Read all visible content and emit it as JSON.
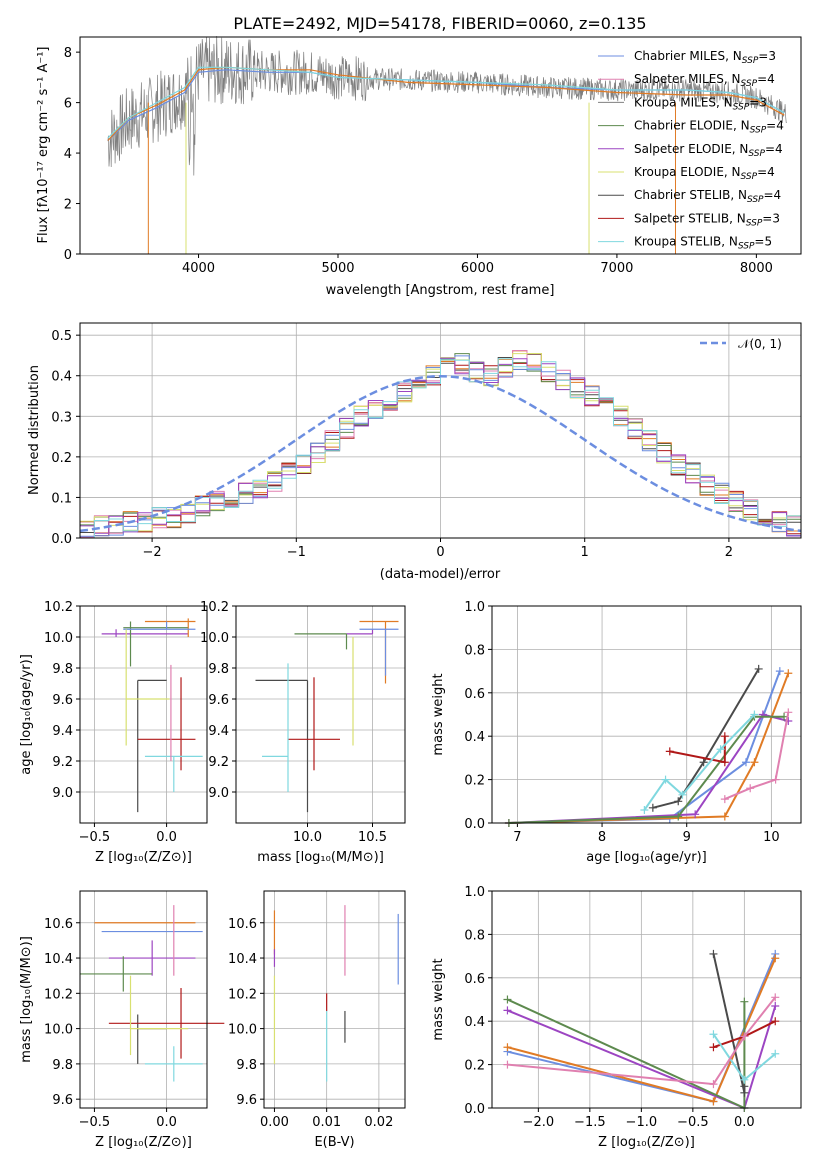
{
  "colors": [
    "#6c8ee0",
    "#e07b25",
    "#8b3fae",
    "#5d8a4e",
    "#9c45c2",
    "#d8e070",
    "#4a4a4a",
    "#b01818",
    "#80d8df",
    "#e080b0",
    "#808080"
  ],
  "spectrum": {
    "title": "PLATE=2492, MJD=54178, FIBERID=0060, z=0.135",
    "xlabel": "wavelength [Angstrom, rest frame]",
    "ylabel": "Flux [fλ10⁻¹⁷ erg cm⁻² s⁻¹ A⁻¹]",
    "xticks": [
      "4000",
      "5000",
      "6000",
      "7000",
      "8000"
    ],
    "yticks": [
      "0",
      "2",
      "4",
      "6",
      "8"
    ],
    "xlim": [
      3150,
      8320
    ],
    "ylim": [
      0,
      8.6
    ],
    "legend": [
      "Chabrier MILES, N_SSP=3",
      "Salpeter MILES, N_SSP=4",
      "Kroupa MILES, N_SSP=3",
      "Chabrier ELODIE, N_SSP=4",
      "Salpeter ELODIE, N_SSP=4",
      "Kroupa ELODIE, N_SSP=4",
      "Chabrier STELIB, N_SSP=4",
      "Salpeter STELIB, N_SSP=3",
      "Kroupa STELIB, N_SSP=5"
    ]
  },
  "histogram": {
    "xlabel": "(data-model)/error",
    "ylabel": "Normed distribution",
    "legend": "𝒩(0, 1)",
    "xticks": [
      "−2",
      "−1",
      "0",
      "1",
      "2"
    ],
    "yticks": [
      "0.0",
      "0.1",
      "0.2",
      "0.3",
      "0.4",
      "0.5"
    ],
    "xlim": [
      -2.5,
      2.5
    ],
    "ylim": [
      0,
      0.53
    ]
  },
  "panels": {
    "age_vs_Z": {
      "xlabel": "Z [log₁₀(Z/Z⊙)]",
      "ylabel": "age  [log₁₀(age/yr)]",
      "xticks": [
        "−0.5",
        "0.0"
      ],
      "yticks": [
        "9.0",
        "9.2",
        "9.4",
        "9.6",
        "9.8",
        "10.0",
        "10.2"
      ]
    },
    "age_vs_mass": {
      "xlabel": "mass [log₁₀(M/M⊙)]",
      "xticks": [
        "10.0",
        "10.5"
      ],
      "yticks": [
        "9.0",
        "9.2",
        "9.4",
        "9.6",
        "9.8",
        "10.0",
        "10.2"
      ]
    },
    "weight_vs_age": {
      "xlabel": "age  [log₁₀(age/yr)]",
      "ylabel": "mass weight",
      "xticks": [
        "7",
        "8",
        "9",
        "10"
      ],
      "yticks": [
        "0.0",
        "0.2",
        "0.4",
        "0.6",
        "0.8",
        "1.0"
      ]
    },
    "mass_vs_Z": {
      "xlabel": "Z [log₁₀(Z/Z⊙)]",
      "ylabel": "mass [log₁₀(M/M⊙)]",
      "xticks": [
        "−0.5",
        "0.0"
      ],
      "yticks": [
        "9.6",
        "9.8",
        "10.0",
        "10.2",
        "10.4",
        "10.6"
      ]
    },
    "mass_vs_ebv": {
      "xlabel": "E(B-V)",
      "xticks": [
        "0.00",
        "0.01",
        "0.02"
      ],
      "yticks": [
        "9.6",
        "9.8",
        "10.0",
        "10.2",
        "10.4",
        "10.6"
      ]
    },
    "weight_vs_Z": {
      "xlabel": "Z [log₁₀(Z/Z⊙)]",
      "ylabel": "mass weight",
      "xticks": [
        "−2.0",
        "−1.5",
        "−1.0",
        "−0.5",
        "0.0"
      ],
      "yticks": [
        "0.0",
        "0.2",
        "0.4",
        "0.6",
        "0.8",
        "1.0"
      ]
    }
  },
  "chart_data": [
    {
      "type": "line",
      "title": "PLATE=2492, MJD=54178, FIBERID=0060, z=0.135",
      "xlabel": "wavelength [Angstrom, rest frame]",
      "ylabel": "Flux [fλ10⁻¹⁷ erg cm⁻² s⁻¹ A⁻¹]",
      "xlim": [
        3150,
        8320
      ],
      "ylim": [
        0,
        8.6
      ],
      "x": [
        3350,
        3500,
        3700,
        3900,
        4000,
        4200,
        4500,
        4800,
        5000,
        5500,
        6000,
        6500,
        7000,
        7500,
        7800,
        8000,
        8200
      ],
      "series": [
        {
          "name": "Chabrier MILES, N_SSP=3",
          "values": [
            4.5,
            5.3,
            5.8,
            6.4,
            7.2,
            7.3,
            7.2,
            7.2,
            7.0,
            6.9,
            6.8,
            6.6,
            6.5,
            6.5,
            6.4,
            6.2,
            5.6
          ]
        },
        {
          "name": "Salpeter MILES, N_SSP=4",
          "values": [
            4.5,
            5.4,
            5.9,
            6.5,
            7.3,
            7.4,
            7.3,
            7.3,
            7.1,
            6.8,
            6.7,
            6.6,
            6.4,
            6.3,
            6.3,
            6.1,
            5.5
          ]
        },
        {
          "name": "Kroupa STELIB, N_SSP=5",
          "values": [
            4.6,
            5.4,
            6.0,
            6.6,
            7.4,
            7.4,
            7.3,
            7.2,
            7.0,
            6.9,
            6.8,
            6.7,
            6.5,
            6.5,
            6.4,
            6.2,
            5.6
          ]
        }
      ]
    },
    {
      "type": "bar",
      "xlabel": "(data-model)/error",
      "ylabel": "Normed distribution",
      "xlim": [
        -2.5,
        2.5
      ],
      "ylim": [
        0,
        0.53
      ],
      "bin_width": 0.1,
      "bin_start": -2.5,
      "values": [
        0.02,
        0.03,
        0.03,
        0.04,
        0.04,
        0.05,
        0.05,
        0.06,
        0.08,
        0.09,
        0.1,
        0.11,
        0.12,
        0.14,
        0.16,
        0.18,
        0.21,
        0.24,
        0.27,
        0.3,
        0.32,
        0.34,
        0.36,
        0.38,
        0.4,
        0.42,
        0.43,
        0.41,
        0.4,
        0.42,
        0.44,
        0.43,
        0.41,
        0.39,
        0.37,
        0.35,
        0.33,
        0.3,
        0.27,
        0.24,
        0.21,
        0.18,
        0.16,
        0.13,
        0.11,
        0.09,
        0.07,
        0.05,
        0.04,
        0.03
      ],
      "series_curve": {
        "name": "𝒩(0, 1)",
        "mean": 0,
        "sigma": 1
      }
    },
    {
      "type": "scatter",
      "xlabel": "age  [log₁₀(age/yr)]",
      "ylabel": "mass weight",
      "xlim": [
        6.7,
        10.35
      ],
      "ylim": [
        0,
        1.0
      ],
      "series": [
        {
          "x": [
            6.9,
            8.8,
            9.7,
            10.1
          ],
          "values": [
            0.0,
            0.02,
            0.28,
            0.7
          ]
        },
        {
          "x": [
            6.9,
            9.45,
            9.8,
            10.2
          ],
          "values": [
            0.0,
            0.03,
            0.28,
            0.69
          ]
        },
        {
          "x": [
            6.9,
            9.1,
            9.9,
            10.2
          ],
          "values": [
            0.0,
            0.04,
            0.5,
            0.47
          ]
        },
        {
          "x": [
            6.9,
            8.9,
            9.8,
            10.15
          ],
          "values": [
            0.0,
            0.03,
            0.49,
            0.49
          ]
        },
        {
          "x": [
            8.6,
            8.9,
            9.2,
            9.85
          ],
          "values": [
            0.07,
            0.1,
            0.28,
            0.71
          ]
        },
        {
          "x": [
            8.8,
            9.45,
            9.45
          ],
          "values": [
            0.33,
            0.28,
            0.4
          ]
        },
        {
          "x": [
            8.5,
            8.75,
            8.95,
            9.4,
            9.8
          ],
          "values": [
            0.06,
            0.2,
            0.13,
            0.34,
            0.5
          ]
        },
        {
          "x": [
            9.45,
            9.75,
            10.05,
            10.2
          ],
          "values": [
            0.11,
            0.16,
            0.2,
            0.51
          ]
        }
      ]
    },
    {
      "type": "scatter",
      "xlabel": "Z [log₁₀(Z/Z⊙)]",
      "ylabel": "mass weight",
      "xlim": [
        -2.45,
        0.55
      ],
      "ylim": [
        0,
        1.0
      ],
      "series": [
        {
          "x": [
            -2.3,
            -0.3,
            0.3
          ],
          "values": [
            0.26,
            0.03,
            0.71
          ]
        },
        {
          "x": [
            -2.3,
            -0.3,
            0.3
          ],
          "values": [
            0.28,
            0.03,
            0.69
          ]
        },
        {
          "x": [
            -2.3,
            0.0,
            0.3
          ],
          "values": [
            0.45,
            0.0,
            0.47
          ]
        },
        {
          "x": [
            -2.3,
            0.0,
            0.0
          ],
          "values": [
            0.5,
            0.0,
            0.49
          ]
        },
        {
          "x": [
            -0.3,
            0.0,
            0.0
          ],
          "values": [
            0.71,
            0.07,
            0.1
          ]
        },
        {
          "x": [
            -0.3,
            0.0,
            0.3
          ],
          "values": [
            0.28,
            0.33,
            0.4
          ]
        },
        {
          "x": [
            -0.3,
            0.0,
            0.3
          ],
          "values": [
            0.34,
            0.13,
            0.25
          ]
        },
        {
          "x": [
            -2.3,
            -0.3,
            0.0,
            0.3
          ],
          "values": [
            0.2,
            0.11,
            0.33,
            0.51
          ]
        }
      ]
    }
  ]
}
